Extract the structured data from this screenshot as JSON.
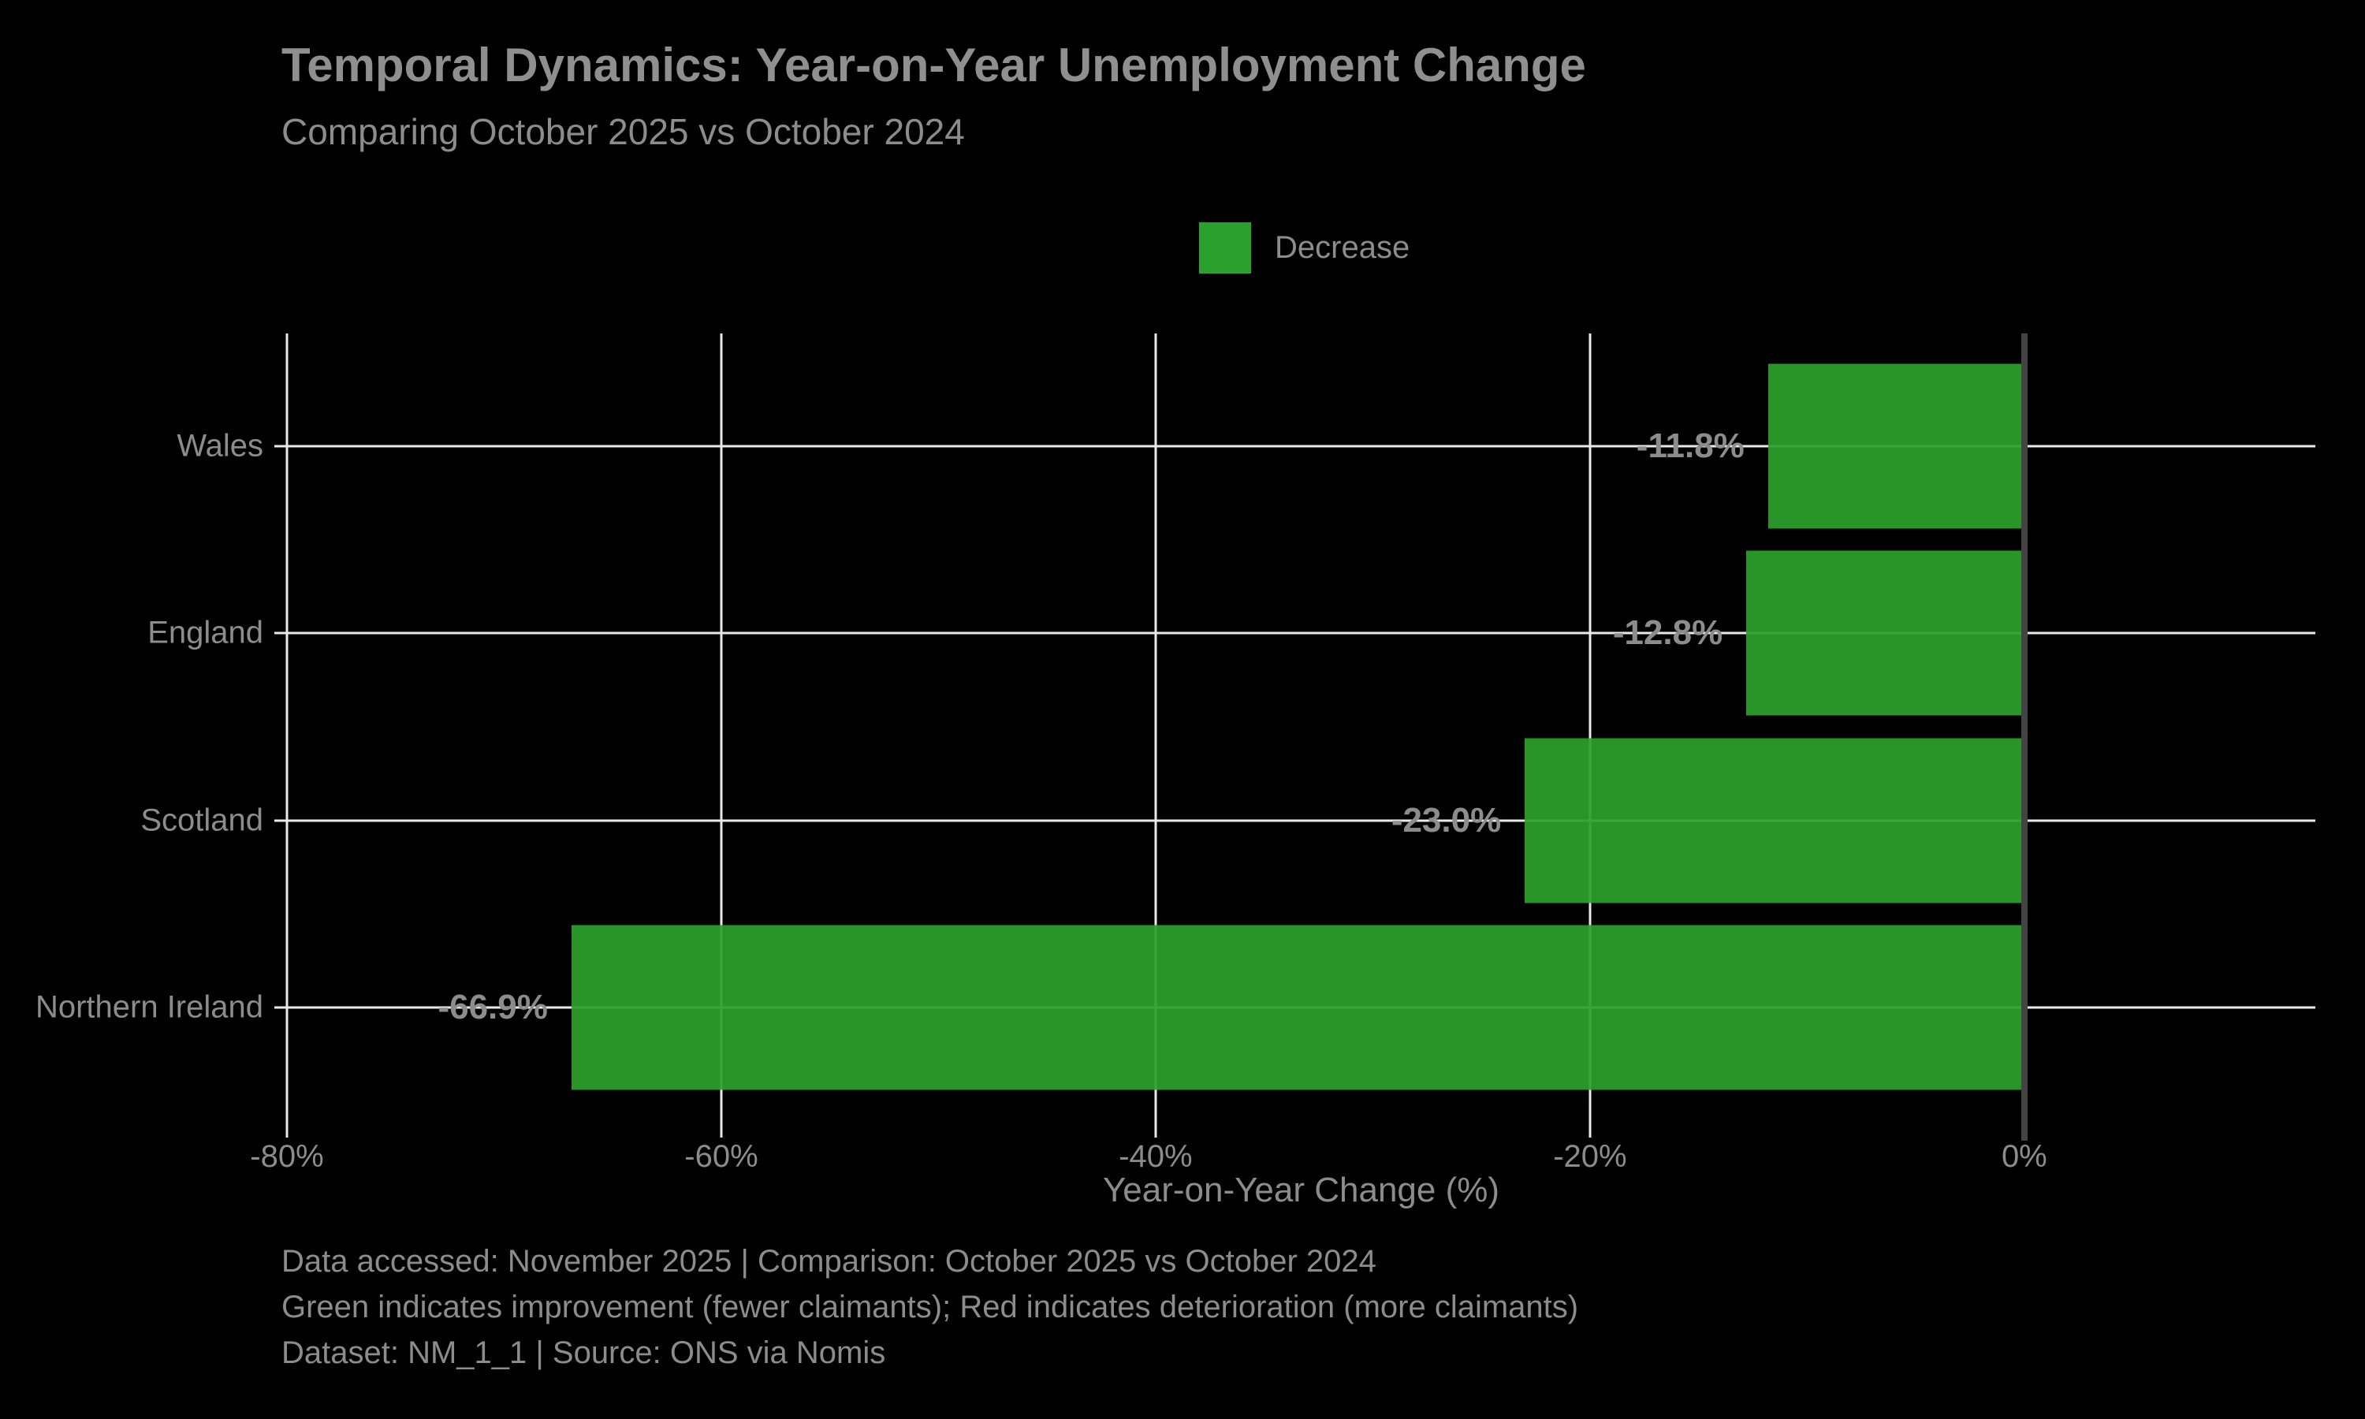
{
  "title": "Temporal Dynamics: Year-on-Year Unemployment Change",
  "subtitle": "Comparing October 2025 vs October 2024",
  "legend": {
    "items": [
      {
        "label": "Decrease",
        "color": "#2ca02c"
      }
    ]
  },
  "chart_data": {
    "type": "bar",
    "orientation": "horizontal",
    "title": "Temporal Dynamics: Year-on-Year Unemployment Change",
    "subtitle": "Comparing October 2025 vs October 2024",
    "categories": [
      "Wales",
      "England",
      "Scotland",
      "Northern Ireland"
    ],
    "values": [
      -11.8,
      -12.8,
      -23.0,
      -66.9
    ],
    "bar_labels": [
      "-11.8%",
      "-12.8%",
      "-23.0%",
      "-66.9%"
    ],
    "bar_color": "#2ca02c",
    "xlabel": "Year-on-Year Change (%)",
    "ylabel": "",
    "xlim": [
      -80,
      13.4
    ],
    "xticks": [
      -80,
      -60,
      -40,
      -20,
      0
    ],
    "xtick_labels": [
      "-80%",
      "-60%",
      "-40%",
      "-20%",
      "0%"
    ],
    "grid": true,
    "legend_entries": [
      "Decrease"
    ],
    "legend_position": "upper center"
  },
  "colors": {
    "background": "#000000",
    "bar_green": "#2ca02c",
    "text_gray": "#8c8c8c",
    "gridline": "#e9e9e9",
    "zero_line": "#434343"
  },
  "footer": {
    "line1": "Data accessed: November 2025 | Comparison: October 2025 vs October 2024",
    "line2": "Green indicates improvement (fewer claimants); Red indicates deterioration (more claimants)",
    "line3": "Dataset: NM_1_1 | Source: ONS via Nomis"
  }
}
